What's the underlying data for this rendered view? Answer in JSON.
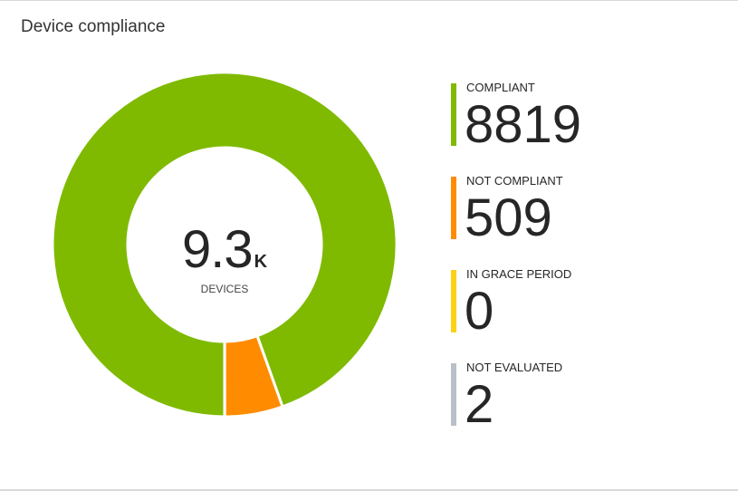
{
  "title": "Device compliance",
  "center": {
    "value": "9.3",
    "unit": "K",
    "label": "DEVICES"
  },
  "chart_data": {
    "type": "pie",
    "style": "donut",
    "title": "Device compliance",
    "total_label": "9.3K DEVICES",
    "legend_position": "right",
    "series": [
      {
        "name": "COMPLIANT",
        "value": 8819,
        "color": "#7fba00"
      },
      {
        "name": "NOT COMPLIANT",
        "value": 509,
        "color": "#ff8c00"
      },
      {
        "name": "IN GRACE PERIOD",
        "value": 0,
        "color": "#fcd116"
      },
      {
        "name": "NOT EVALUATED",
        "value": 2,
        "color": "#bac0c8"
      }
    ]
  }
}
